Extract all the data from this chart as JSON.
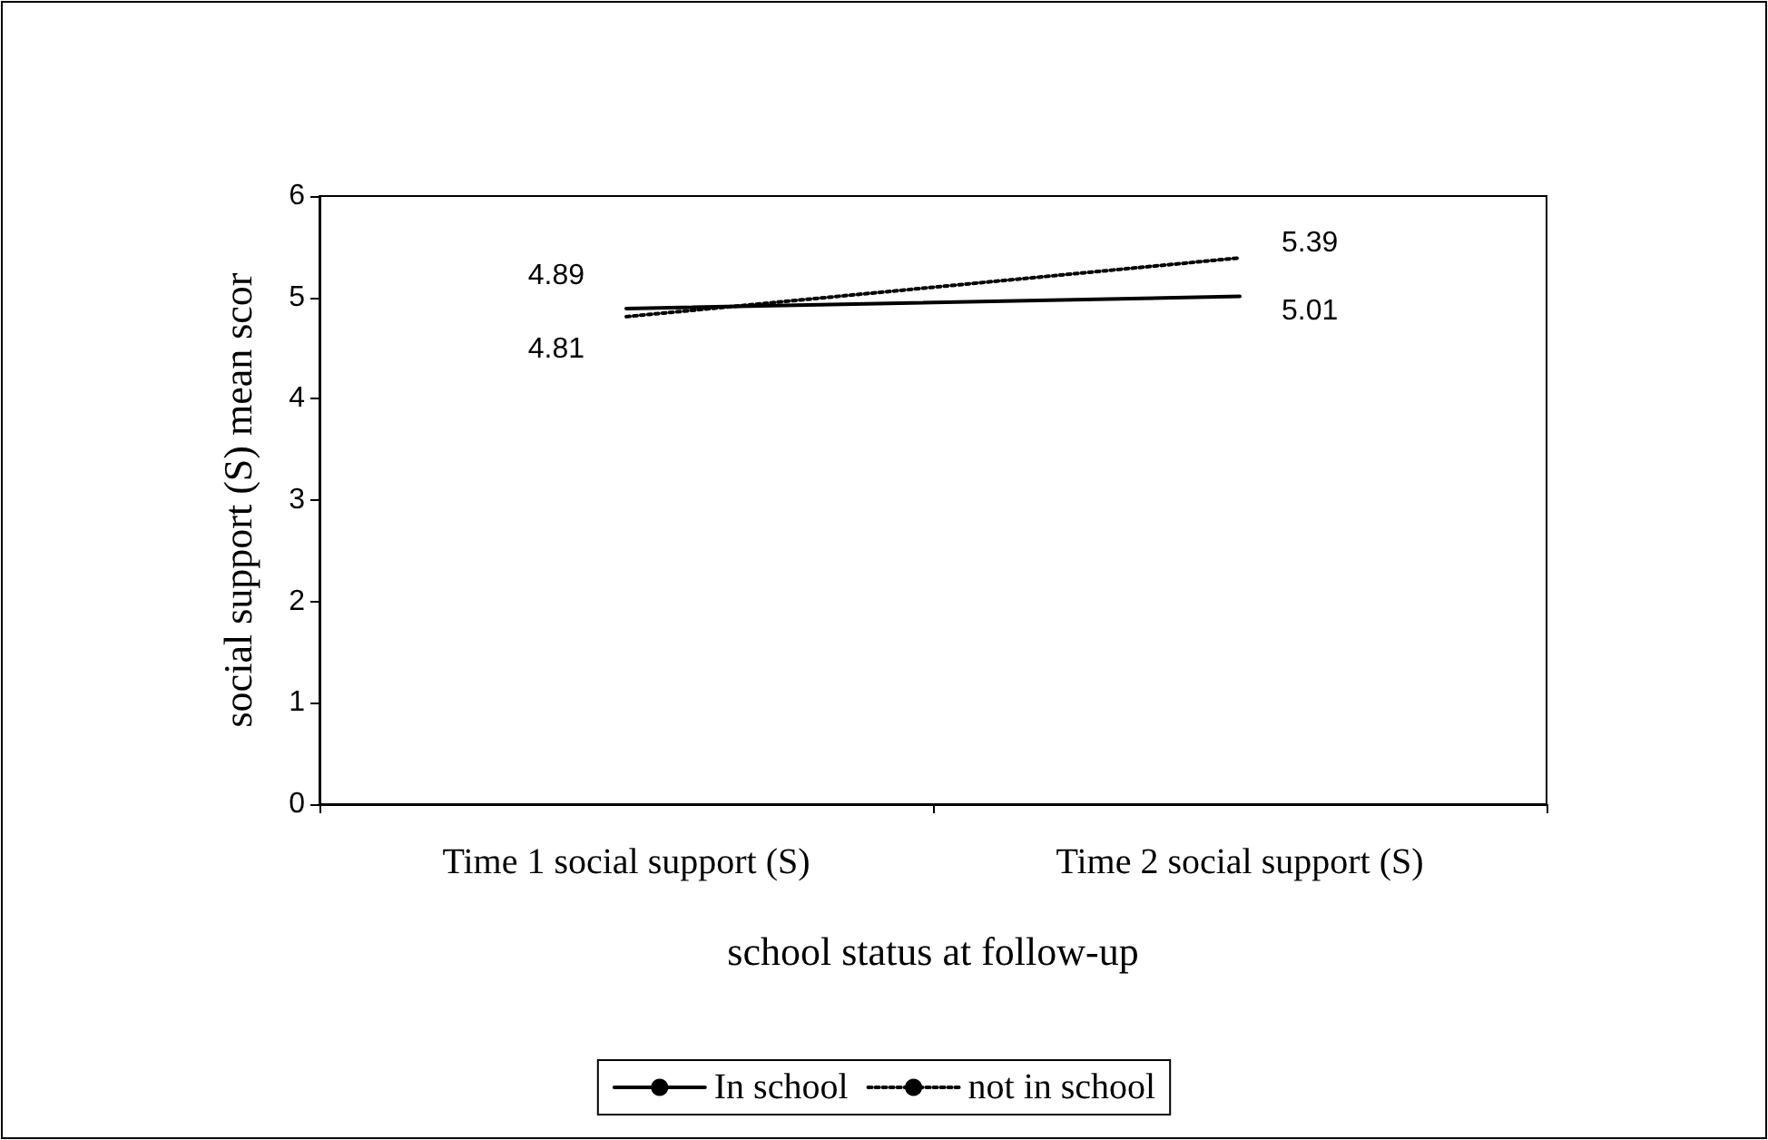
{
  "chart_data": {
    "type": "line",
    "xlabel": "school status at follow-up",
    "ylabel": "social support (S) mean scor",
    "categories": [
      "Time 1 social support (S)",
      "Time 2 social support (S)"
    ],
    "series": [
      {
        "name": "In school",
        "color": "#000000",
        "values": [
          4.89,
          5.01
        ],
        "line_style": "solid"
      },
      {
        "name": "not in school",
        "color": "#000000",
        "values": [
          4.81,
          5.39
        ],
        "line_style": "dotted"
      }
    ],
    "ylim": [
      0,
      6
    ],
    "yticks": [
      0,
      1,
      2,
      3,
      4,
      5,
      6
    ],
    "grid": false,
    "legend": "bottom",
    "marker": "none",
    "data_labels": true
  }
}
